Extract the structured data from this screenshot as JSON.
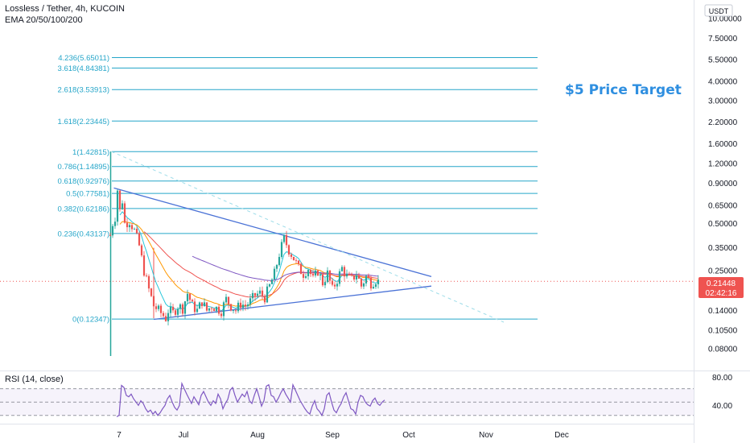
{
  "header": {
    "title": "Lossless / Tether, 4h, KUCOIN",
    "indicator": "EMA 20/50/100/200",
    "currency": "USDT"
  },
  "annotation": "$5 Price Target",
  "current_price": {
    "value": "0.21448",
    "countdown": "02:42:16"
  },
  "rsi": {
    "label": "RSI (14, close)",
    "axis_labels": [
      "80.00",
      "40.00"
    ]
  },
  "colors": {
    "fib": "#26a6c9",
    "trendline": "#4a72d6",
    "up": "#26a69a",
    "down": "#ef5350",
    "rsi": "#7e57c2",
    "price_tag": "#ef5350",
    "annotation": "#2f8fe0"
  },
  "chart_data": {
    "type": "candlestick",
    "title": "Lossless / Tether, 4h, KUCOIN",
    "ylabel": "USDT",
    "y_scale": "log",
    "ylim": [
      0.065,
      12
    ],
    "y_ticks": [
      "10.00000",
      "7.50000",
      "5.50000",
      "4.00000",
      "3.00000",
      "2.20000",
      "1.60000",
      "1.20000",
      "0.90000",
      "0.65000",
      "0.50000",
      "0.35000",
      "0.25000",
      "0.14000",
      "0.10500",
      "0.08000"
    ],
    "y_tick_values": [
      10.0,
      7.5,
      5.5,
      4.0,
      3.0,
      2.2,
      1.6,
      1.2,
      0.9,
      0.65,
      0.5,
      0.35,
      0.25,
      0.14,
      0.105,
      0.08
    ],
    "x_ticks": [
      "7",
      "Jul",
      "Aug",
      "Sep",
      "Oct",
      "Nov",
      "Dec"
    ],
    "fib_levels": [
      {
        "label": "4.236(5.65011)",
        "value": 5.65011
      },
      {
        "label": "3.618(4.84381)",
        "value": 4.84381
      },
      {
        "label": "2.618(3.53913)",
        "value": 3.53913
      },
      {
        "label": "1.618(2.23445)",
        "value": 2.23445
      },
      {
        "label": "1(1.42815)",
        "value": 1.42815
      },
      {
        "label": "0.786(1.14895)",
        "value": 1.14895
      },
      {
        "label": "0.618(0.92976)",
        "value": 0.92976
      },
      {
        "label": "0.5(0.77581)",
        "value": 0.77581
      },
      {
        "label": "0.382(0.62186)",
        "value": 0.62186
      },
      {
        "label": "0.236(0.43137)",
        "value": 0.43137
      },
      {
        "label": "0(0.12347)",
        "value": 0.12347
      }
    ],
    "price_path": [
      [
        0.0,
        0.42
      ],
      [
        0.5,
        1.43
      ],
      [
        1.2,
        0.33
      ],
      [
        2.0,
        0.55
      ],
      [
        3.0,
        0.82
      ],
      [
        4.0,
        0.6
      ],
      [
        5.0,
        0.7
      ],
      [
        6.0,
        0.5
      ],
      [
        8.0,
        0.52
      ],
      [
        10.0,
        0.45
      ],
      [
        12.0,
        0.36
      ],
      [
        14.0,
        0.25
      ],
      [
        16.0,
        0.19
      ],
      [
        18.0,
        0.15
      ],
      [
        20.0,
        0.14
      ],
      [
        22.0,
        0.13
      ],
      [
        23.0,
        0.125
      ],
      [
        24.0,
        0.14
      ],
      [
        26.0,
        0.135
      ],
      [
        28.0,
        0.15
      ],
      [
        30.0,
        0.145
      ],
      [
        32.0,
        0.18
      ],
      [
        34.0,
        0.15
      ],
      [
        36.0,
        0.14
      ],
      [
        38.0,
        0.16
      ],
      [
        40.0,
        0.14
      ],
      [
        42.0,
        0.15
      ],
      [
        44.0,
        0.145
      ],
      [
        46.0,
        0.14
      ],
      [
        48.0,
        0.165
      ],
      [
        50.0,
        0.15
      ],
      [
        52.0,
        0.14
      ],
      [
        54.0,
        0.155
      ],
      [
        56.0,
        0.15
      ],
      [
        58.0,
        0.16
      ],
      [
        60.0,
        0.175
      ],
      [
        62.0,
        0.18
      ],
      [
        64.0,
        0.17
      ],
      [
        66.0,
        0.2
      ],
      [
        68.0,
        0.24
      ],
      [
        70.0,
        0.32
      ],
      [
        72.0,
        0.4
      ],
      [
        74.0,
        0.34
      ],
      [
        76.0,
        0.3
      ],
      [
        78.0,
        0.26
      ],
      [
        80.0,
        0.24
      ],
      [
        82.0,
        0.26
      ],
      [
        84.0,
        0.22
      ],
      [
        86.0,
        0.25
      ],
      [
        88.0,
        0.21
      ],
      [
        90.0,
        0.24
      ],
      [
        92.0,
        0.19
      ],
      [
        94.0,
        0.22
      ],
      [
        96.0,
        0.26
      ],
      [
        98.0,
        0.23
      ],
      [
        100.0,
        0.22
      ],
      [
        102.0,
        0.24
      ],
      [
        104.0,
        0.2
      ],
      [
        106.0,
        0.23
      ],
      [
        108.0,
        0.21
      ],
      [
        110.0,
        0.22
      ],
      [
        111.0,
        0.214
      ]
    ],
    "trendlines": [
      {
        "from": [
          1.5,
          0.84
        ],
        "to": [
          133.0,
          0.23
        ]
      },
      {
        "from": [
          18.0,
          0.123
        ],
        "to": [
          133.0,
          0.2
        ]
      },
      {
        "from": [
          0.5,
          1.43
        ],
        "to": [
          163.0,
          0.118
        ],
        "style": "dashed"
      }
    ],
    "rsi_series": [
      28,
      30,
      75,
      72,
      60,
      58,
      62,
      55,
      50,
      45,
      52,
      48,
      40,
      35,
      38,
      32,
      36,
      30,
      34,
      40,
      45,
      55,
      60,
      50,
      42,
      38,
      45,
      78,
      70,
      62,
      55,
      48,
      58,
      52,
      46,
      60,
      66,
      58,
      50,
      45,
      52,
      48,
      62,
      55,
      40,
      48,
      54,
      68,
      72,
      60,
      50,
      56,
      62,
      58,
      66,
      52,
      48,
      60,
      70,
      58,
      44,
      52,
      74,
      76,
      60,
      58,
      50,
      56,
      64,
      70,
      62,
      56,
      50,
      76,
      68,
      60,
      52,
      46,
      40,
      35,
      32,
      44,
      52,
      40,
      36,
      30,
      40,
      60,
      64,
      50,
      38,
      34,
      42,
      48,
      58,
      64,
      52,
      40,
      38,
      32,
      50,
      60,
      58,
      50,
      46,
      44,
      52,
      56,
      48,
      45,
      50,
      53
    ],
    "rsi_ylim": [
      20,
      95
    ],
    "rsi_bands": [
      70,
      50,
      30
    ]
  }
}
